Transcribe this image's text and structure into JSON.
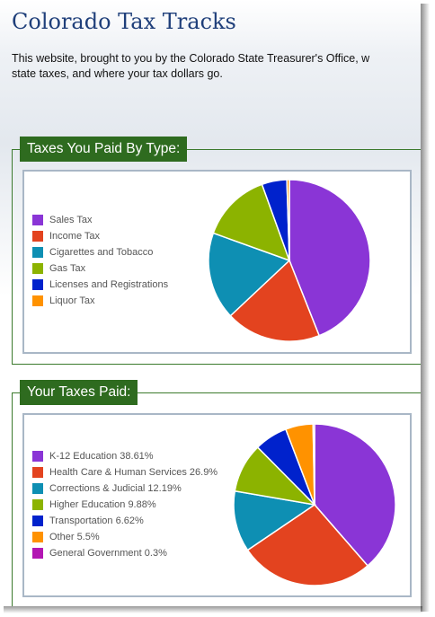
{
  "header": {
    "title": "Colorado Tax Tracks",
    "intro_line1": "This website, brought to you by the Colorado State Treasurer's Office, w",
    "intro_line2": "state taxes, and where your tax dollars go."
  },
  "taxes_by_type": {
    "heading": "Taxes You Paid By Type:",
    "legend": [
      {
        "label": "Sales Tax",
        "color": "#8a35d6"
      },
      {
        "label": "Income Tax",
        "color": "#e3431f"
      },
      {
        "label": "Cigarettes and Tobacco",
        "color": "#0e8fb3"
      },
      {
        "label": "Gas Tax",
        "color": "#8cb300"
      },
      {
        "label": "Licenses and Registrations",
        "color": "#0022cc"
      },
      {
        "label": "Liquor Tax",
        "color": "#ff9200"
      }
    ]
  },
  "taxes_paid": {
    "heading": "Your Taxes Paid:",
    "legend": [
      {
        "label": "K-12 Education 38.61%",
        "color": "#8a35d6"
      },
      {
        "label": "Health Care & Human Services 26.9%",
        "color": "#e3431f"
      },
      {
        "label": "Corrections & Judicial 12.19%",
        "color": "#0e8fb3"
      },
      {
        "label": "Higher Education 9.88%",
        "color": "#8cb300"
      },
      {
        "label": "Transportation 6.62%",
        "color": "#0022cc"
      },
      {
        "label": "Other 5.5%",
        "color": "#ff9200"
      },
      {
        "label": "General Government 0.3%",
        "color": "#b316b3"
      }
    ]
  },
  "chart_data": [
    {
      "type": "pie",
      "title": "Taxes You Paid By Type:",
      "categories": [
        "Sales Tax",
        "Income Tax",
        "Cigarettes and Tobacco",
        "Gas Tax",
        "Licenses and Registrations",
        "Liquor Tax"
      ],
      "values": [
        44,
        19,
        17.5,
        14,
        5,
        0.5
      ],
      "colors": [
        "#8a35d6",
        "#e3431f",
        "#0e8fb3",
        "#8cb300",
        "#0022cc",
        "#ff9200"
      ]
    },
    {
      "type": "pie",
      "title": "Your Taxes Paid:",
      "categories": [
        "K-12 Education",
        "Health Care & Human Services",
        "Corrections & Judicial",
        "Higher Education",
        "Transportation",
        "Other",
        "General Government"
      ],
      "values": [
        38.61,
        26.9,
        12.19,
        9.88,
        6.62,
        5.5,
        0.3
      ],
      "colors": [
        "#8a35d6",
        "#e3431f",
        "#0e8fb3",
        "#8cb300",
        "#0022cc",
        "#ff9200",
        "#b316b3"
      ]
    }
  ]
}
